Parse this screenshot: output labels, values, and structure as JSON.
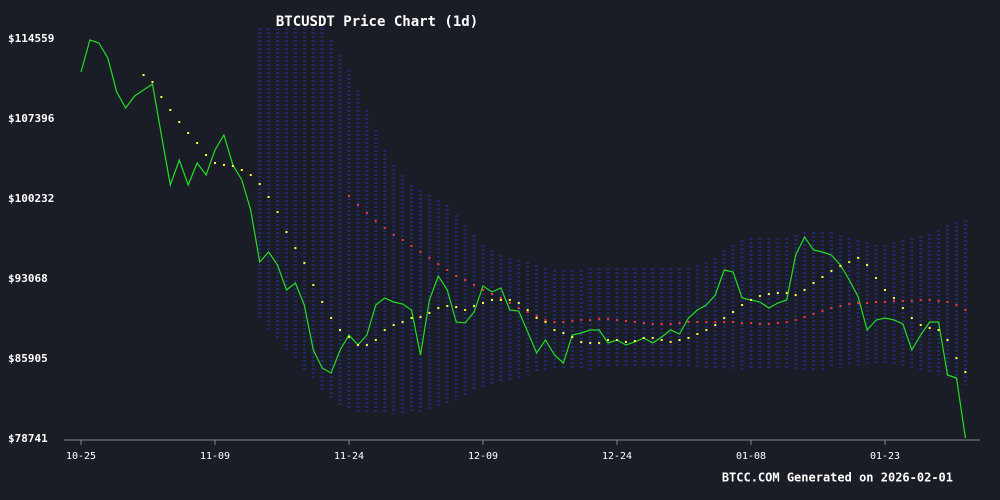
{
  "chart_data": {
    "type": "line",
    "title": "BTCUSDT Price Chart (1d)",
    "footer": "BTCC.COM Generated on 2026-02-01",
    "x": [
      "10-25",
      "10-26",
      "10-27",
      "10-28",
      "10-29",
      "10-30",
      "10-31",
      "11-01",
      "11-02",
      "11-03",
      "11-04",
      "11-05",
      "11-06",
      "11-07",
      "11-08",
      "11-09",
      "11-10",
      "11-11",
      "11-12",
      "11-13",
      "11-14",
      "11-15",
      "11-16",
      "11-17",
      "11-18",
      "11-19",
      "11-20",
      "11-21",
      "11-22",
      "11-23",
      "11-24",
      "11-25",
      "11-26",
      "11-27",
      "11-28",
      "11-29",
      "11-30",
      "12-01",
      "12-02",
      "12-03",
      "12-04",
      "12-05",
      "12-06",
      "12-07",
      "12-08",
      "12-09",
      "12-10",
      "12-11",
      "12-12",
      "12-13",
      "12-14",
      "12-15",
      "12-16",
      "12-17",
      "12-18",
      "12-19",
      "12-20",
      "12-21",
      "12-22",
      "12-23",
      "12-24",
      "12-25",
      "12-26",
      "12-27",
      "12-28",
      "12-29",
      "12-30",
      "12-31",
      "01-01",
      "01-02",
      "01-03",
      "01-04",
      "01-05",
      "01-06",
      "01-07",
      "01-08",
      "01-09",
      "01-10",
      "01-11",
      "01-12",
      "01-13",
      "01-14",
      "01-15",
      "01-16",
      "01-17",
      "01-18",
      "01-19",
      "01-20",
      "01-21",
      "01-22",
      "01-23",
      "01-24",
      "01-25",
      "01-26",
      "01-27",
      "01-28",
      "01-29",
      "01-30",
      "01-31",
      "02-01"
    ],
    "xticks": [
      "10-25",
      "11-09",
      "11-24",
      "12-09",
      "12-24",
      "01-08",
      "01-23"
    ],
    "ylim": [
      78741,
      114559
    ],
    "yticks": [
      {
        "value": 78741,
        "label": "$78741"
      },
      {
        "value": 85905,
        "label": "$85905"
      },
      {
        "value": 93068,
        "label": "$93068"
      },
      {
        "value": 100232,
        "label": "$100232"
      },
      {
        "value": 107396,
        "label": "$107396"
      },
      {
        "value": 114559,
        "label": "$114559"
      }
    ],
    "grid": false,
    "band": {
      "color": "#232a7a",
      "upper": [
        null,
        null,
        null,
        null,
        null,
        null,
        null,
        null,
        null,
        null,
        null,
        null,
        null,
        null,
        null,
        null,
        null,
        null,
        null,
        null,
        115544,
        115544,
        115544,
        115544,
        115544,
        115544,
        115544,
        115544,
        114470,
        113126,
        111783,
        109992,
        108202,
        106411,
        104620,
        103276,
        102381,
        101486,
        101038,
        100590,
        100142,
        99695,
        98799,
        97904,
        97008,
        96113,
        95665,
        95217,
        94948,
        94770,
        94591,
        94322,
        94054,
        93874,
        93874,
        93874,
        93874,
        94054,
        94054,
        94054,
        94054,
        94054,
        94054,
        94054,
        94054,
        94054,
        94054,
        94054,
        94054,
        94322,
        94591,
        94948,
        95665,
        96113,
        96560,
        96740,
        96740,
        96740,
        96740,
        96740,
        97008,
        97277,
        97277,
        97277,
        97277,
        97008,
        96740,
        96560,
        96381,
        96113,
        96113,
        96381,
        96560,
        96740,
        96919,
        97098,
        97456,
        97904,
        98172,
        98351
      ],
      "lower": [
        null,
        null,
        null,
        null,
        null,
        null,
        null,
        null,
        null,
        null,
        null,
        null,
        null,
        null,
        null,
        null,
        null,
        null,
        null,
        null,
        89397,
        88501,
        87606,
        86710,
        85815,
        84919,
        84024,
        83129,
        82233,
        81785,
        81337,
        81158,
        80979,
        80979,
        80979,
        80979,
        80979,
        81069,
        81158,
        81337,
        81517,
        81785,
        82233,
        82681,
        83129,
        83308,
        83576,
        83845,
        84024,
        84203,
        84472,
        84740,
        84919,
        84919,
        84919,
        84919,
        84919,
        84919,
        85099,
        85099,
        85099,
        85099,
        85099,
        85099,
        85099,
        85099,
        85099,
        85099,
        85099,
        85099,
        84919,
        84919,
        84919,
        84919,
        84919,
        84919,
        84919,
        84919,
        84919,
        84919,
        84919,
        84919,
        84919,
        84919,
        85099,
        85099,
        85278,
        85367,
        85367,
        85367,
        85367,
        85367,
        85278,
        85099,
        84919,
        84740,
        84472,
        84203,
        84024,
        83576
      ]
    },
    "series": [
      {
        "style": "line",
        "color": "#22dd22",
        "values": [
          111604,
          114470,
          114200,
          112860,
          109813,
          108380,
          109455,
          109992,
          110530,
          105963,
          101486,
          103724,
          101486,
          103456,
          102380,
          104620,
          105963,
          103276,
          101933,
          99245,
          94590,
          95485,
          94321,
          92083,
          92710,
          90740,
          86710,
          85100,
          84650,
          86710,
          88055,
          87160,
          88055,
          90740,
          91367,
          91009,
          90830,
          90292,
          86263,
          91188,
          93337,
          92083,
          89218,
          89128,
          90113,
          92441,
          91904,
          92262,
          90292,
          90203,
          88323,
          86442,
          87606,
          86263,
          85547,
          88055,
          88234,
          88502,
          88502,
          87338,
          87606,
          87160,
          87428,
          87786,
          87338,
          87875,
          88502,
          88144,
          89577,
          90292,
          90740,
          91636,
          93874,
          93695,
          91367,
          91188,
          91009,
          90472,
          90920,
          91188,
          95217,
          96829,
          95665,
          95485,
          95217,
          94321,
          92979,
          91457,
          88502,
          89397,
          89577,
          89397,
          89039,
          86710,
          88055,
          89218,
          89218,
          84472,
          84203,
          78831
        ]
      },
      {
        "style": "dots",
        "color": "#ffff33",
        "values": [
          null,
          null,
          null,
          null,
          null,
          null,
          null,
          111335,
          110709,
          109365,
          108201,
          107127,
          106142,
          105246,
          104172,
          103455,
          103276,
          103187,
          102829,
          102381,
          101575,
          100411,
          99068,
          97277,
          95844,
          94501,
          92531,
          91009,
          89576,
          88501,
          87875,
          87158,
          87158,
          87606,
          88501,
          88949,
          89218,
          89576,
          89665,
          90024,
          90471,
          90650,
          90561,
          90292,
          90650,
          90919,
          91188,
          91188,
          91188,
          90919,
          90292,
          89576,
          89218,
          88501,
          88233,
          87875,
          87427,
          87337,
          87337,
          87606,
          87606,
          87427,
          87516,
          87785,
          87785,
          87606,
          87427,
          87606,
          87785,
          88143,
          88501,
          88949,
          89576,
          90113,
          90740,
          91188,
          91546,
          91725,
          91815,
          91815,
          91635,
          92083,
          92710,
          93247,
          93785,
          94232,
          94590,
          94948,
          94322,
          93158,
          92083,
          91367,
          90471,
          89576,
          88949,
          88680,
          88501,
          87606,
          85994,
          84741
        ]
      },
      {
        "style": "dots",
        "color": "#ff3333",
        "values": [
          null,
          null,
          null,
          null,
          null,
          null,
          null,
          null,
          null,
          null,
          null,
          null,
          null,
          null,
          null,
          null,
          null,
          null,
          null,
          null,
          null,
          null,
          null,
          null,
          null,
          null,
          null,
          null,
          null,
          null,
          100500,
          99695,
          98978,
          98262,
          97635,
          97008,
          96560,
          96023,
          95486,
          94948,
          94411,
          93874,
          93337,
          92979,
          92531,
          92083,
          91725,
          91367,
          90919,
          90471,
          90113,
          89755,
          89397,
          89218,
          89218,
          89307,
          89397,
          89397,
          89486,
          89486,
          89397,
          89307,
          89218,
          89128,
          89039,
          89039,
          89039,
          89128,
          89218,
          89218,
          89218,
          89218,
          89218,
          89218,
          89128,
          89128,
          89039,
          89039,
          89128,
          89218,
          89397,
          89665,
          89934,
          90203,
          90471,
          90650,
          90830,
          90919,
          90919,
          91009,
          91009,
          91098,
          91098,
          91098,
          91188,
          91188,
          91098,
          91009,
          90740,
          90292
        ]
      }
    ]
  }
}
